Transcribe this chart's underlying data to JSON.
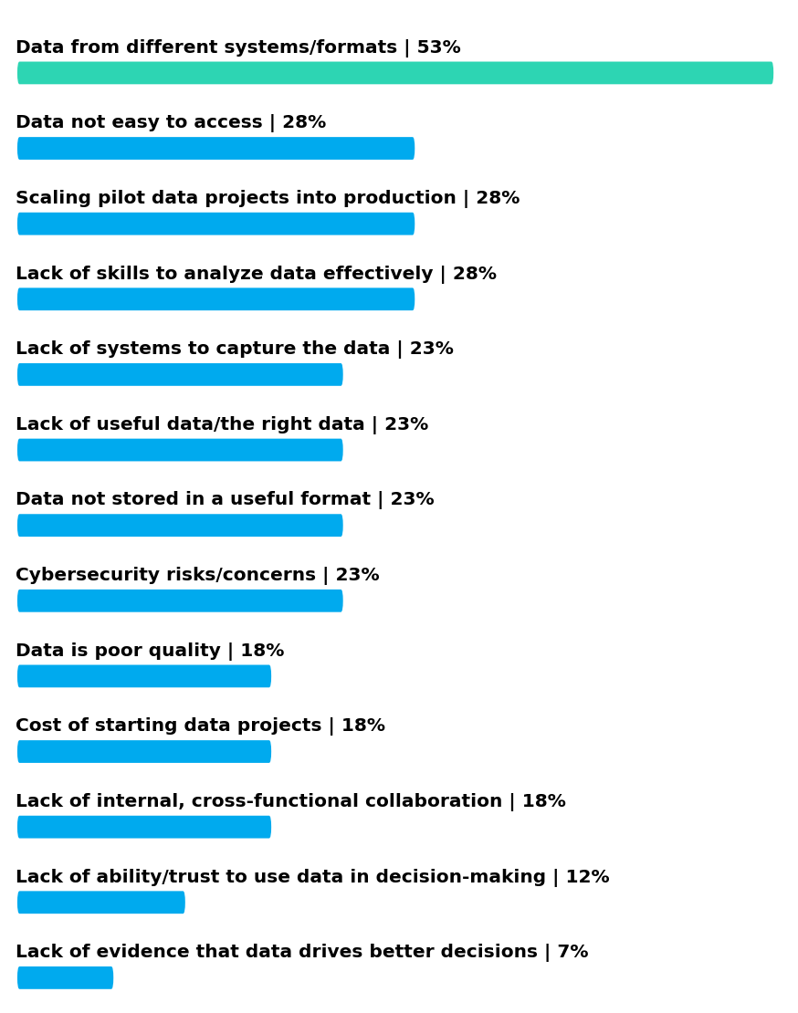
{
  "categories": [
    "Data from different systems/formats | 53%",
    "Data not easy to access | 28%",
    "Scaling pilot data projects into production | 28%",
    "Lack of skills to analyze data effectively | 28%",
    "Lack of systems to capture the data | 23%",
    "Lack of useful data/the right data | 23%",
    "Data not stored in a useful format | 23%",
    "Cybersecurity risks/concerns | 23%",
    "Data is poor quality | 18%",
    "Cost of starting data projects | 18%",
    "Lack of internal, cross-functional collaboration | 18%",
    "Lack of ability/trust to use data in decision-making | 12%",
    "Lack of evidence that data drives better decisions | 7%"
  ],
  "values": [
    53,
    28,
    28,
    28,
    23,
    23,
    23,
    23,
    18,
    18,
    18,
    12,
    7
  ],
  "bar_colors": [
    "#2DD5B3",
    "#00AAEE",
    "#00AAEE",
    "#00AAEE",
    "#00AAEE",
    "#00AAEE",
    "#00AAEE",
    "#00AAEE",
    "#00AAEE",
    "#00AAEE",
    "#00AAEE",
    "#00AAEE",
    "#00AAEE"
  ],
  "max_value": 53,
  "background_color": "#ffffff",
  "text_color": "#000000",
  "label_fontsize": 14.5,
  "label_fontweight": "bold"
}
